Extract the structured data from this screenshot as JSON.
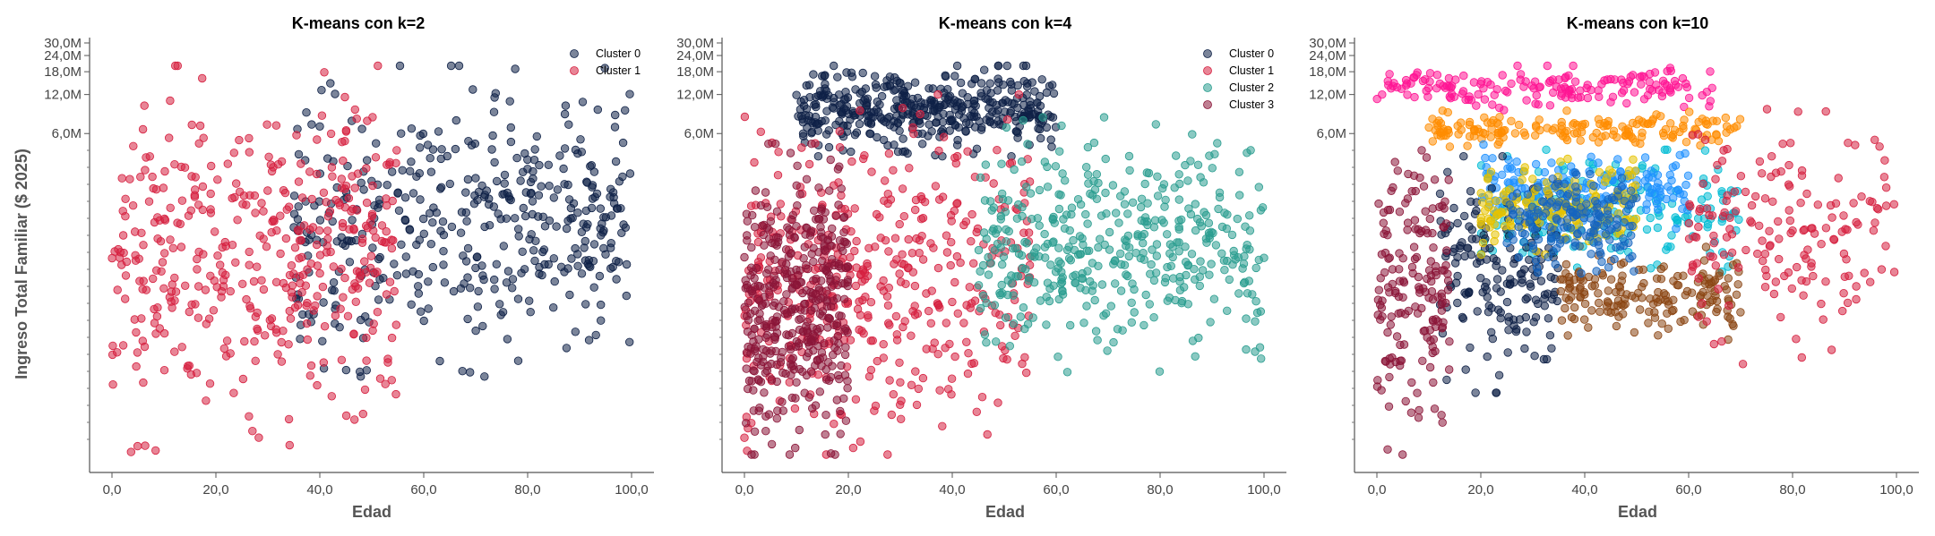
{
  "y_axis_label": "Ingreso Total Familiar ($ 2025)",
  "chart_data": [
    {
      "type": "scatter",
      "title": "K-means con k=2",
      "xlabel": "Edad",
      "ylabel": "Ingreso Total Familiar ($ 2025)",
      "x_ticks": [
        "0,0",
        "20,0",
        "40,0",
        "60,0",
        "80,0",
        "100,0"
      ],
      "y_ticks": [
        "6,0M",
        "12,0M",
        "18,0M",
        "24,0M",
        "30,0M"
      ],
      "y_scale": "log",
      "legend_position": "top-right",
      "series": [
        {
          "name": "Cluster 0",
          "color": "#0f2147",
          "x_range": [
            35,
            100
          ],
          "y_range": [
            80000,
            20000000
          ]
        },
        {
          "name": "Cluster 1",
          "color": "#d62040",
          "x_range": [
            0,
            55
          ],
          "y_range": [
            20000,
            20000000
          ]
        }
      ]
    },
    {
      "type": "scatter",
      "title": "K-means con k=4",
      "xlabel": "Edad",
      "ylabel": "",
      "x_ticks": [
        "0,0",
        "20,0",
        "40,0",
        "60,0",
        "80,0",
        "100,0"
      ],
      "y_ticks": [
        "6,0M",
        "12,0M",
        "18,0M",
        "24,0M",
        "30,0M"
      ],
      "y_scale": "log",
      "legend_position": "top-right",
      "series": [
        {
          "name": "Cluster 0",
          "color": "#0f2147",
          "x_range": [
            10,
            60
          ],
          "y_range": [
            4000000,
            20000000
          ]
        },
        {
          "name": "Cluster 1",
          "color": "#d62040",
          "x_range": [
            0,
            55
          ],
          "y_range": [
            20000,
            12000000
          ]
        },
        {
          "name": "Cluster 2",
          "color": "#2a9d8f",
          "x_range": [
            45,
            100
          ],
          "y_range": [
            80000,
            8000000
          ]
        },
        {
          "name": "Cluster 3",
          "color": "#8b1538",
          "x_range": [
            0,
            20
          ],
          "y_range": [
            20000,
            5000000
          ]
        }
      ]
    },
    {
      "type": "scatter",
      "title": "K-means con k=10",
      "xlabel": "Edad",
      "ylabel": "",
      "x_ticks": [
        "0,0",
        "20,0",
        "40,0",
        "60,0",
        "80,0",
        "100,0"
      ],
      "y_ticks": [
        "6,0M",
        "12,0M",
        "18,0M",
        "24,0M",
        "30,0M"
      ],
      "y_scale": "log",
      "series": [
        {
          "color": "#ff1493",
          "x_range": [
            0,
            65
          ],
          "y_range": [
            9000000,
            20000000
          ]
        },
        {
          "color": "#ff8c00",
          "x_range": [
            10,
            70
          ],
          "y_range": [
            4500000,
            9000000
          ]
        },
        {
          "color": "#00bcd4",
          "x_range": [
            20,
            70
          ],
          "y_range": [
            400000,
            4500000
          ]
        },
        {
          "color": "#1e90ff",
          "x_range": [
            20,
            60
          ],
          "y_range": [
            1000000,
            5000000
          ]
        },
        {
          "color": "#0f2147",
          "x_range": [
            12,
            35
          ],
          "y_range": [
            60000,
            4000000
          ]
        },
        {
          "color": "#8b4513",
          "x_range": [
            35,
            70
          ],
          "y_range": [
            150000,
            800000
          ]
        },
        {
          "color": "#d62040",
          "x_range": [
            60,
            100
          ],
          "y_range": [
            100000,
            10000000
          ]
        },
        {
          "color": "#8b1538",
          "x_range": [
            0,
            14
          ],
          "y_range": [
            20000,
            5000000
          ]
        },
        {
          "color": "#e6c200",
          "x_range": [
            20,
            50
          ],
          "y_range": [
            700000,
            4000000
          ]
        },
        {
          "color": "#1565c0",
          "x_range": [
            25,
            50
          ],
          "y_range": [
            500000,
            3000000
          ]
        }
      ]
    }
  ]
}
